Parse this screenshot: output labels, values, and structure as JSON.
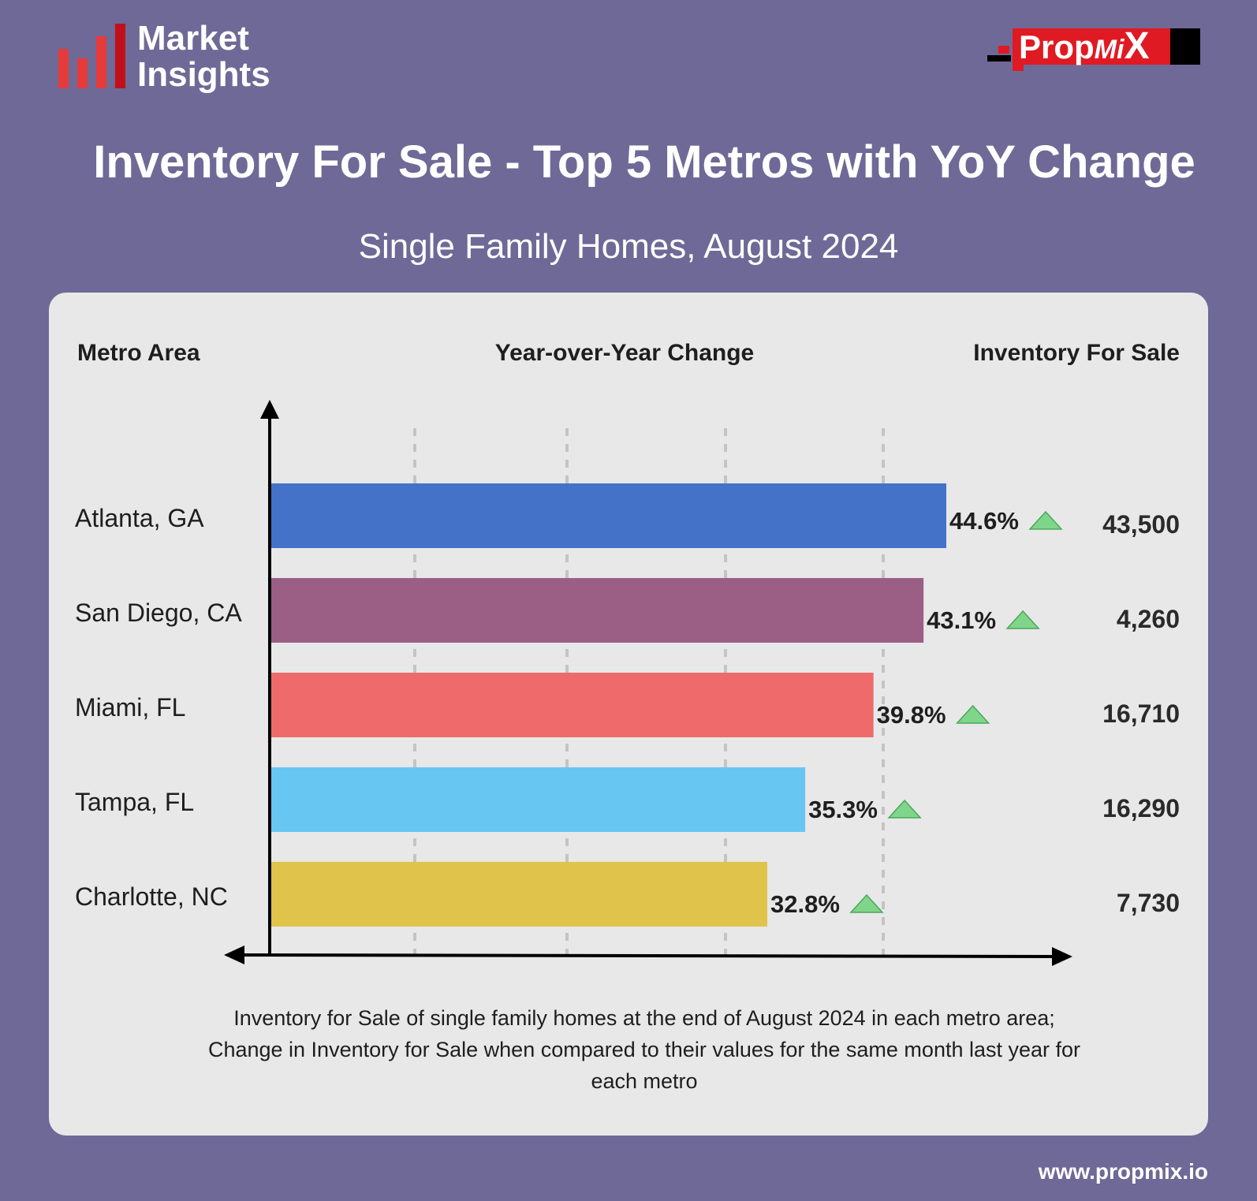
{
  "brand": {
    "logo_line1": "Market",
    "logo_line2": "Insights",
    "propmix_prop": "Prop",
    "propmix_mi": "Mi",
    "propmix_x": "X",
    "website": "www.propmix.io"
  },
  "colors": {
    "background": "#6f6997",
    "card": "#e8e8e8",
    "logo_red": "#e63b3b",
    "propmix_red": "#e01a22",
    "up_arrow": "#7fd68a"
  },
  "header": {
    "title": "Inventory For Sale - Top 5 Metros with YoY Change",
    "subtitle": "Single Family Homes, August 2024"
  },
  "columns": {
    "metro": "Metro Area",
    "yoy": "Year-over-Year Change",
    "inventory": "Inventory For Sale"
  },
  "rows": [
    {
      "metro": "Atlanta, GA",
      "pct_label": "44.6%",
      "inventory": "43,500",
      "color": "#4472c8"
    },
    {
      "metro": "San Diego, CA",
      "pct_label": "43.1%",
      "inventory": "4,260",
      "color": "#9b5f86"
    },
    {
      "metro": "Miami, FL",
      "pct_label": "39.8%",
      "inventory": "16,710",
      "color": "#ef6b6b"
    },
    {
      "metro": "Tampa, FL",
      "pct_label": "35.3%",
      "inventory": "16,290",
      "color": "#68c7f2"
    },
    {
      "metro": "Charlotte, NC",
      "pct_label": "32.8%",
      "inventory": "7,730",
      "color": "#e0c34a"
    }
  ],
  "chart_data": {
    "type": "bar",
    "orientation": "horizontal",
    "title": "Inventory For Sale - Top 5 Metros with YoY Change",
    "subtitle": "Single Family Homes, August 2024",
    "categories": [
      "Atlanta, GA",
      "San Diego, CA",
      "Miami, FL",
      "Tampa, FL",
      "Charlotte, NC"
    ],
    "series": [
      {
        "name": "Year-over-Year Change",
        "values": [
          44.6,
          43.1,
          39.8,
          35.3,
          32.8
        ],
        "unit": "%"
      },
      {
        "name": "Inventory For Sale",
        "values": [
          43500,
          4260,
          16710,
          16290,
          7730
        ]
      }
    ],
    "xlim": [
      0,
      50
    ],
    "grid": true,
    "direction_marker": "up"
  },
  "footnote": {
    "line1": "Inventory for Sale of single family homes at the end of August 2024 in each metro area;",
    "line2": "Change in Inventory for Sale when compared to their values for the same month last year for",
    "line3": "each metro"
  }
}
